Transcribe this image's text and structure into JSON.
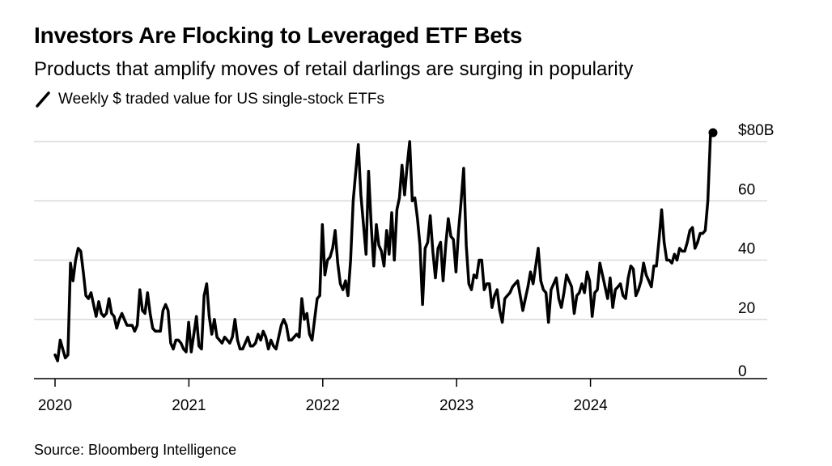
{
  "header": {
    "title": "Investors Are Flocking to Leveraged ETF Bets",
    "subtitle": "Products that amplify moves of retail darlings are surging in popularity",
    "legend_label": "Weekly $ traded value for US single-stock ETFs"
  },
  "footer": {
    "source": "Source: Bloomberg Intelligence"
  },
  "chart_data": {
    "type": "line",
    "series": [
      {
        "color": "#000000",
        "x_start": 2020.0,
        "x_step_years": 0.0192,
        "values": [
          8,
          6,
          13,
          10,
          7,
          8,
          39,
          33,
          40,
          44,
          43,
          36,
          28,
          27,
          29,
          25,
          21,
          26,
          22,
          21,
          22,
          27,
          22,
          21,
          17,
          20,
          22,
          20,
          18,
          18,
          18,
          16,
          18,
          30,
          23,
          22,
          29,
          22,
          17,
          16,
          16,
          16,
          23,
          25,
          23,
          12,
          10,
          13,
          13,
          12,
          10,
          9,
          19,
          9,
          15,
          21,
          11,
          10,
          28,
          32,
          21,
          15,
          20,
          14,
          13,
          12,
          14,
          13,
          12,
          14,
          20,
          13,
          10,
          10,
          12,
          14,
          11,
          11,
          12,
          15,
          13,
          16,
          14,
          10,
          13,
          11,
          10,
          14,
          18,
          20,
          18,
          13,
          13,
          14,
          15,
          14,
          27,
          20,
          22,
          15,
          13,
          20,
          27,
          28,
          52,
          35,
          40,
          41,
          44,
          50,
          39,
          32,
          30,
          33,
          28,
          40,
          60,
          70,
          79,
          62,
          52,
          42,
          70,
          52,
          38,
          52,
          45,
          43,
          38,
          50,
          42,
          56,
          40,
          57,
          61,
          72,
          62,
          72,
          80,
          60,
          61,
          54,
          45,
          25,
          44,
          46,
          55,
          43,
          34,
          44,
          46,
          33,
          45,
          54,
          48,
          47,
          36,
          50,
          60,
          71,
          45,
          32,
          30,
          35,
          34,
          40,
          40,
          30,
          32,
          32,
          24,
          28,
          30,
          23,
          19,
          27,
          28,
          29,
          31,
          32,
          33,
          28,
          23,
          27,
          31,
          36,
          32,
          38,
          44,
          33,
          30,
          29,
          19,
          30,
          32,
          34,
          27,
          24,
          29,
          35,
          33,
          31,
          22,
          28,
          29,
          32,
          29,
          36,
          33,
          21,
          29,
          30,
          39,
          35,
          31,
          27,
          34,
          24,
          30,
          31,
          32,
          28,
          27,
          34,
          38,
          37,
          28,
          30,
          33,
          39,
          35,
          33,
          31,
          38,
          38,
          47,
          57,
          46,
          40,
          40,
          39,
          42,
          40,
          44,
          43,
          43,
          46,
          50,
          51,
          44,
          46,
          49,
          49,
          50,
          60,
          82,
          83
        ]
      }
    ],
    "x_ticks": [
      2020,
      2021,
      2022,
      2023,
      2024
    ],
    "y_ticks": [
      0,
      20,
      40,
      60,
      80
    ],
    "y_tick_labels": [
      "0",
      "20",
      "40",
      "60",
      "$80B"
    ],
    "xlim": [
      2020,
      2025.3
    ],
    "ylim": [
      0,
      80
    ],
    "grid": true,
    "endpoint_marker": true
  }
}
